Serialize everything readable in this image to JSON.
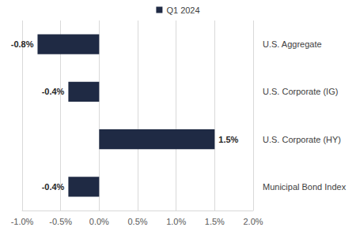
{
  "chart_data": {
    "type": "bar",
    "orientation": "horizontal",
    "categories": [
      "U.S. Aggregate",
      "U.S. Corporate (IG)",
      "U.S. Corporate (HY)",
      "Municipal Bond Index"
    ],
    "series": [
      {
        "name": "Q1 2024",
        "color": "#1f2a44",
        "values": [
          -0.8,
          -0.4,
          1.5,
          -0.4
        ],
        "value_labels": [
          "-0.8%",
          "-0.4%",
          "1.5%",
          "-0.4%"
        ]
      }
    ],
    "xlim": [
      -1.0,
      2.0
    ],
    "xticks": [
      {
        "value": -1.0,
        "label": "-1.0%"
      },
      {
        "value": -0.5,
        "label": "-0.5%"
      },
      {
        "value": 0.0,
        "label": "0.0%"
      },
      {
        "value": 0.5,
        "label": "0.5%"
      },
      {
        "value": 1.0,
        "label": "1.0%"
      },
      {
        "value": 1.5,
        "label": "1.5%"
      },
      {
        "value": 2.0,
        "label": "2.0%"
      }
    ],
    "grid": true,
    "legend": "top",
    "data_labels": true
  }
}
